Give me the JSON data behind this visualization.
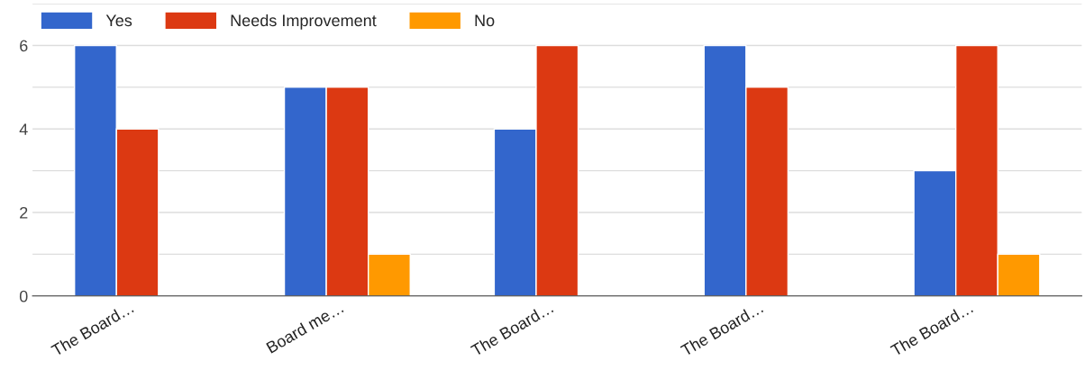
{
  "chart_data": {
    "type": "bar",
    "categories": [
      "The Board…",
      "Board me…",
      "The Board…",
      "The Board…",
      "The Board…"
    ],
    "series": [
      {
        "name": "Yes",
        "color": "#3366cc",
        "values": [
          6,
          5,
          4,
          6,
          3
        ]
      },
      {
        "name": "Needs Improvement",
        "color": "#dc3912",
        "values": [
          4,
          5,
          6,
          5,
          6
        ]
      },
      {
        "name": "No",
        "color": "#ff9900",
        "values": [
          null,
          1,
          null,
          null,
          1
        ]
      }
    ],
    "ylim": [
      0,
      7
    ],
    "yticks": [
      0,
      {
        "value": 1,
        "label": null
      },
      2,
      {
        "value": 3,
        "label": null
      },
      4,
      {
        "value": 5,
        "label": null
      },
      6,
      {
        "value": 7,
        "label": null
      }
    ],
    "grid": "y",
    "legend": "top left"
  }
}
